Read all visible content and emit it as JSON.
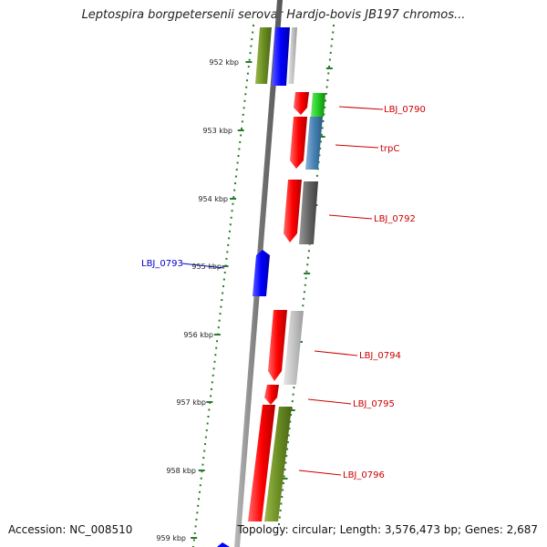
{
  "title": "Leptospira borgpetersenii serovar Hardjo-bovis JB197 chromos...",
  "footer": {
    "accession": "Accession: NC_008510",
    "topology": "Topology: circular; Length: 3,576,473 bp; Genes: 2,687"
  },
  "colors": {
    "backbone": "#888888",
    "tick_marks": "#2a7a2a",
    "forward_label": "#cc0000",
    "reverse_label": "#0000cc"
  },
  "ticks": [
    {
      "label": "952 kbp"
    },
    {
      "label": "953 kbp"
    },
    {
      "label": "954 kbp"
    },
    {
      "label": "955 kbp"
    },
    {
      "label": "956 kbp"
    },
    {
      "label": "957 kbp"
    },
    {
      "label": "958 kbp"
    },
    {
      "label": "959 kbp"
    }
  ],
  "gene_labels": [
    {
      "name": "LBJ_0790",
      "strand": "forward"
    },
    {
      "name": "trpC",
      "strand": "forward"
    },
    {
      "name": "LBJ_0792",
      "strand": "forward"
    },
    {
      "name": "LBJ_0793",
      "strand": "reverse"
    },
    {
      "name": "LBJ_0794",
      "strand": "forward"
    },
    {
      "name": "LBJ_0795",
      "strand": "forward"
    },
    {
      "name": "LBJ_0796",
      "strand": "forward"
    }
  ]
}
